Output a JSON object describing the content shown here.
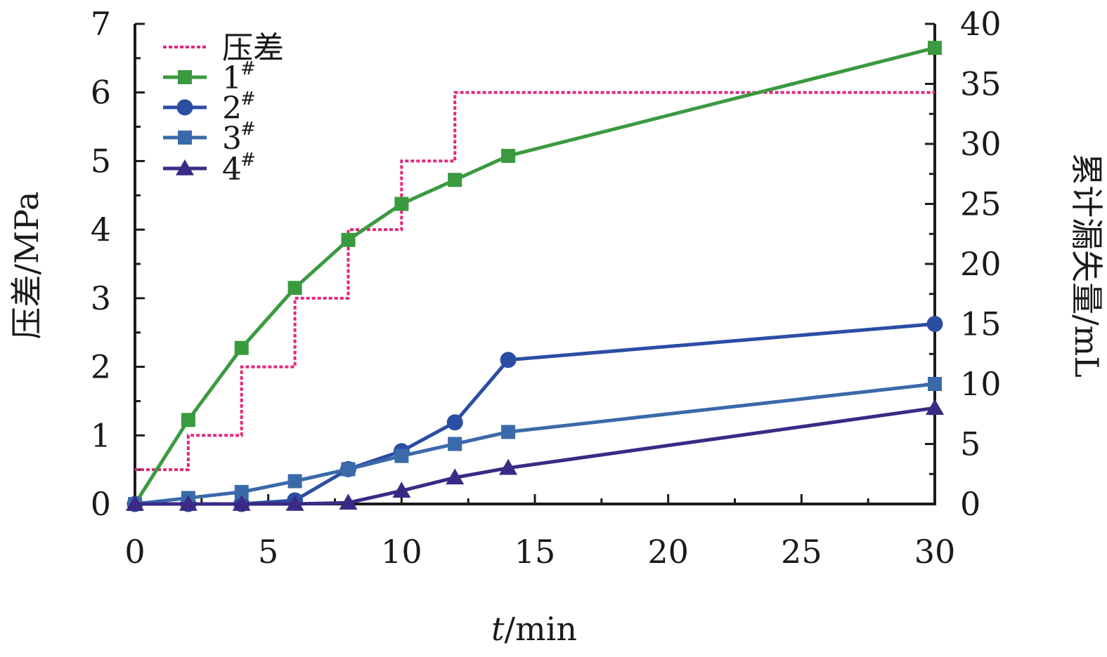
{
  "chart_data": {
    "type": "line",
    "xlabel_italic": "t",
    "xlabel_rest": "/min",
    "ylabel_left": "压差/MPa",
    "ylabel_right": "累计漏失量/mL",
    "x_ticks": [
      0,
      5,
      10,
      15,
      20,
      25,
      30
    ],
    "x_tick_labels": [
      "0",
      "5",
      "10",
      "15",
      "20",
      "25",
      "30"
    ],
    "y_left_ticks": [
      0,
      1,
      2,
      3,
      4,
      5,
      6,
      7
    ],
    "y_left_tick_labels": [
      "0",
      "1",
      "2",
      "3",
      "4",
      "5",
      "6",
      "7"
    ],
    "y_right_ticks": [
      0,
      5,
      10,
      15,
      20,
      25,
      30,
      35,
      40
    ],
    "y_right_tick_labels": [
      "0",
      "5",
      "10",
      "15",
      "20",
      "25",
      "30",
      "35",
      "40"
    ],
    "xlim": [
      0,
      30
    ],
    "ylim_left": [
      0,
      7
    ],
    "ylim_right": [
      0,
      40
    ],
    "grid": false,
    "legend_position": "top-left",
    "pressure_series": {
      "name": "压差",
      "axis": "left",
      "style": "step-dotted",
      "color": "#e0287a",
      "x": [
        0,
        2,
        2,
        4,
        4,
        6,
        6,
        8,
        8,
        10,
        10,
        12,
        12,
        30
      ],
      "y": [
        0.5,
        0.5,
        1,
        1,
        2,
        2,
        3,
        3,
        4,
        4,
        5,
        5,
        6,
        6
      ]
    },
    "series": [
      {
        "name": "1",
        "sup": "#",
        "axis": "right",
        "marker": "square",
        "color": "#3a9a3f",
        "x": [
          0,
          2,
          4,
          6,
          8,
          10,
          12,
          14,
          30
        ],
        "y": [
          0,
          7,
          13,
          18,
          22,
          25,
          27,
          29,
          38
        ]
      },
      {
        "name": "2",
        "sup": "#",
        "axis": "right",
        "marker": "circle",
        "color": "#2b4ea3",
        "x": [
          0,
          2,
          4,
          6,
          8,
          10,
          12,
          14,
          30
        ],
        "y": [
          0,
          0,
          0,
          0.3,
          2.9,
          4.4,
          6.8,
          12,
          15
        ]
      },
      {
        "name": "3",
        "sup": "#",
        "axis": "right",
        "marker": "square",
        "color": "#3a6aaa",
        "x": [
          0,
          2,
          4,
          6,
          8,
          10,
          12,
          14,
          30
        ],
        "y": [
          0,
          0.5,
          1,
          1.9,
          2.9,
          4,
          5,
          6,
          10
        ]
      },
      {
        "name": "4",
        "sup": "#",
        "axis": "right",
        "marker": "triangle",
        "color": "#3b2a85",
        "x": [
          0,
          2,
          4,
          6,
          8,
          10,
          12,
          14,
          30
        ],
        "y": [
          0,
          0,
          0,
          0,
          0.1,
          1.1,
          2.2,
          3,
          8
        ]
      }
    ]
  }
}
